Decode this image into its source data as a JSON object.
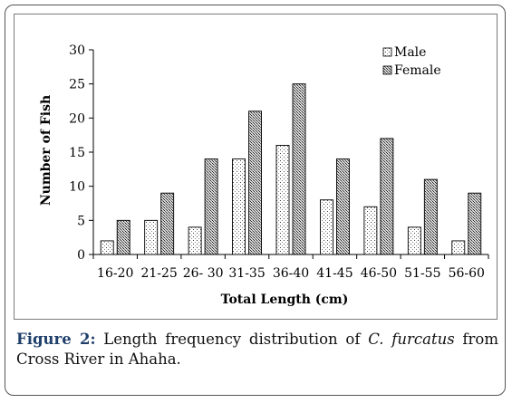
{
  "chart_data": {
    "type": "bar",
    "categories": [
      "16-20",
      "21-25",
      "26- 30",
      "31-35",
      "36-40",
      "41-45",
      "46-50",
      "51-55",
      "56-60"
    ],
    "series": [
      {
        "name": "Male",
        "values": [
          2,
          5,
          4,
          14,
          16,
          8,
          7,
          4,
          2
        ]
      },
      {
        "name": "Female",
        "values": [
          5,
          9,
          14,
          21,
          25,
          14,
          17,
          11,
          9
        ]
      }
    ],
    "xlabel": "Total Length (cm)",
    "ylabel": "Number of Fish",
    "ylim": [
      0,
      30
    ],
    "yticks": [
      0,
      5,
      10,
      15,
      20,
      25,
      30
    ],
    "grid": false,
    "legend": "top-right",
    "colors": {
      "male_pattern": "dotted",
      "female_pattern": "crosshatch"
    }
  },
  "caption": {
    "label": "Figure 2:",
    "text_before": " Length frequency distribution of ",
    "species": "C. furcatus",
    "text_after": " from Cross River in Ahaha."
  }
}
